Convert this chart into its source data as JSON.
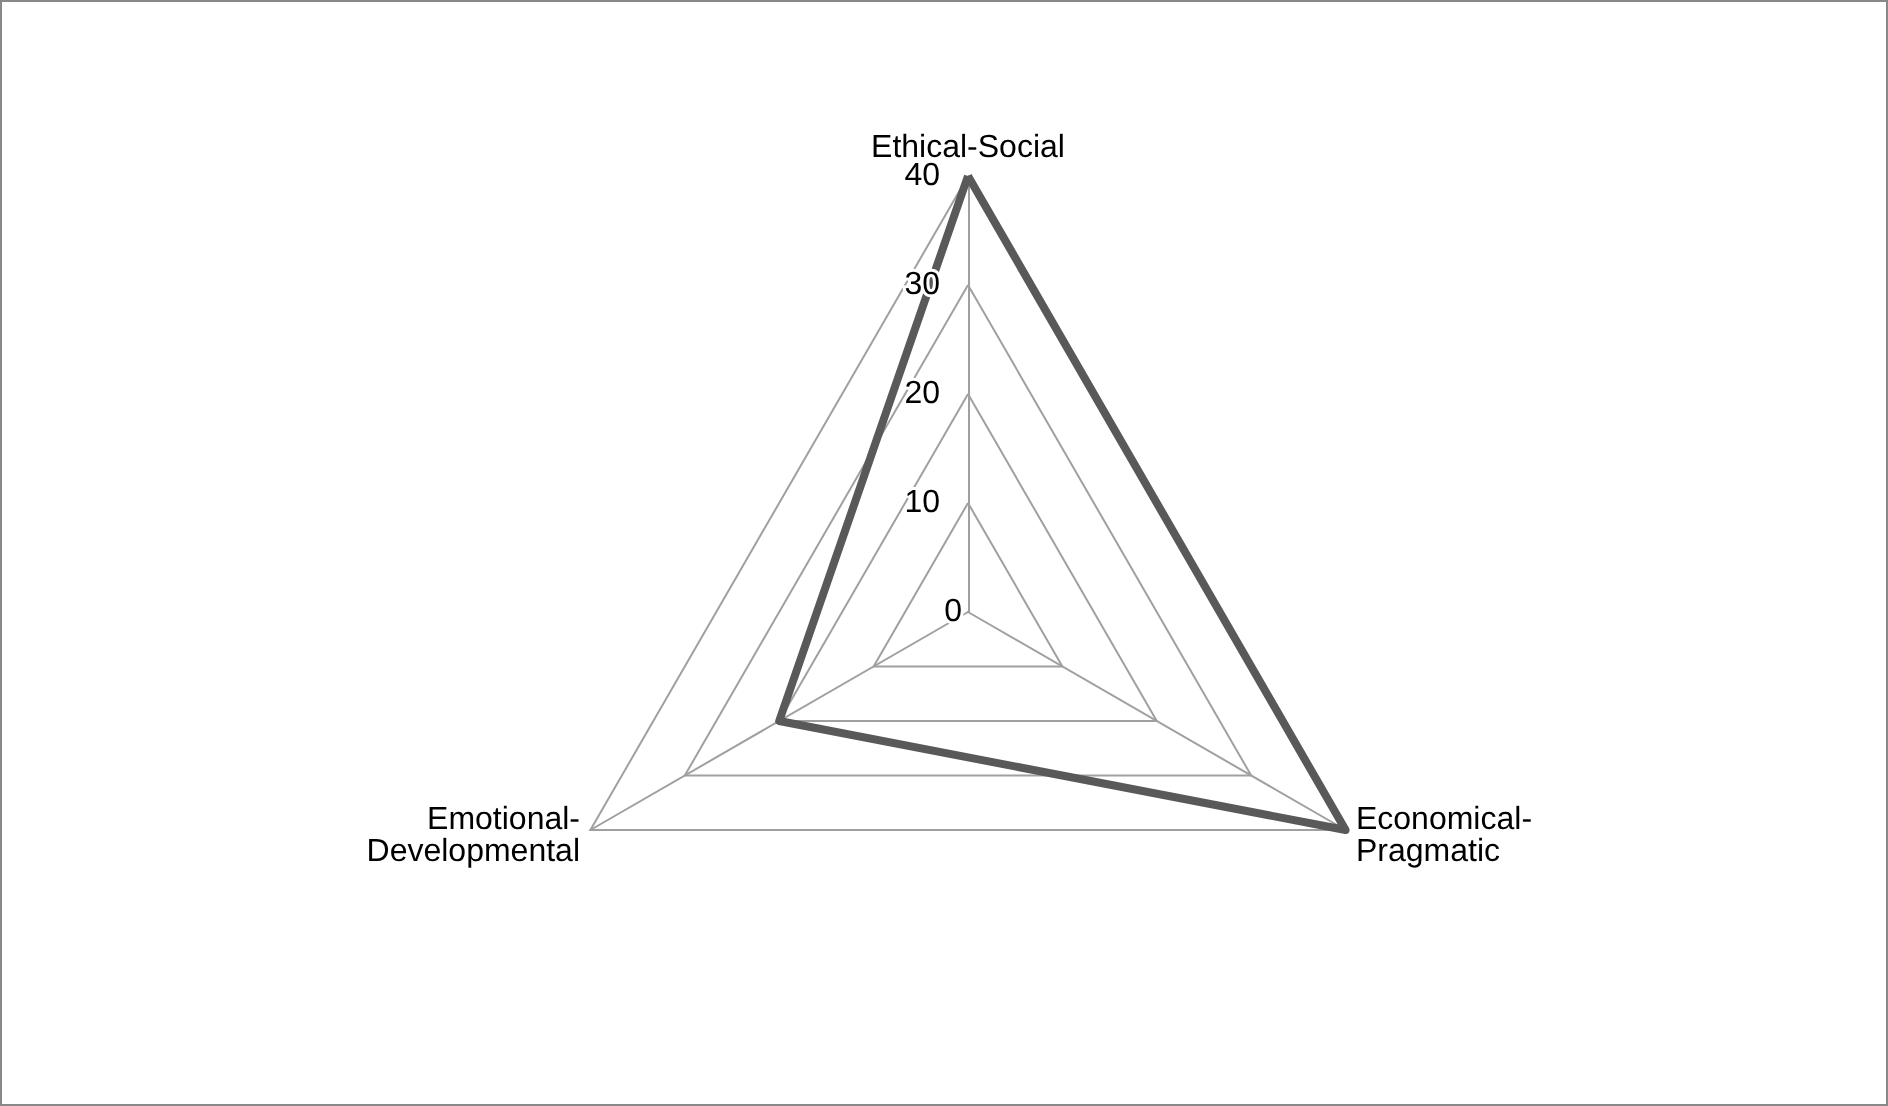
{
  "chart_data": {
    "type": "radar",
    "categories": [
      "Ethical-Social",
      "Economical-Pragmatic",
      "Emotional-Developmental"
    ],
    "series": [
      {
        "color": "#595959",
        "values": [
          40,
          40,
          20
        ]
      }
    ],
    "ylim": [
      0,
      40
    ],
    "yticks": [
      0,
      10,
      20,
      30,
      40
    ],
    "marker": "none",
    "line_style": "solid",
    "grid": true
  }
}
